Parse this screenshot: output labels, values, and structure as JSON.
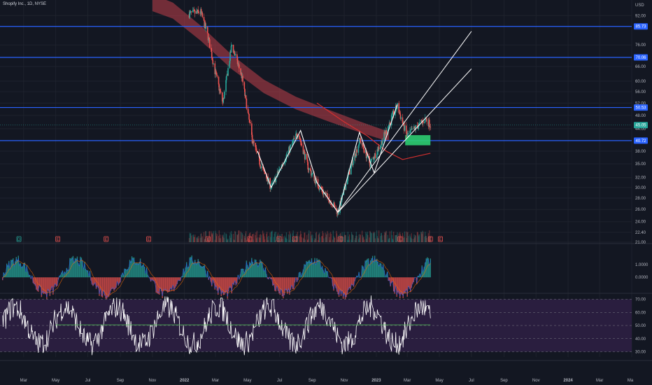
{
  "header": {
    "symbol": "Shopify Inc.",
    "interval": "1D",
    "exchange": "NYSE"
  },
  "currency": "USD",
  "colors": {
    "background": "#131722",
    "up": "#26a69a",
    "down": "#ef5350",
    "level_line": "#2962ff",
    "channel": "#ffffff",
    "ribbon": "#c1404b",
    "rsi_band": "#2a1e3f",
    "rsi_line": "#ffffff",
    "rsi_signal": "#4caf50",
    "macd_line": "#2962ff",
    "signal_line": "#ff6d00",
    "ema_line": "#d32f2f",
    "grid": "#1e222d",
    "axis_text": "#b2b5be",
    "zone": "#2ecc71"
  },
  "chart_data": [
    {
      "type": "candlestick",
      "ylabel": "USD",
      "ylim": [
        21,
        100
      ],
      "y_scale": "log",
      "price_axis_ticks": [
        "92.00",
        "76.00",
        "66.00",
        "60.00",
        "56.00",
        "52.00",
        "48.00",
        "44.00",
        "38.00",
        "35.00",
        "32.00",
        "30.00",
        "28.00",
        "26.00",
        "24.00",
        "22.40",
        "21.00"
      ],
      "x_axis_ticks": [
        "Mar",
        "May",
        "Jul",
        "Sep",
        "Nov",
        "2022",
        "Mar",
        "May",
        "Jul",
        "Sep",
        "Nov",
        "2023",
        "Mar",
        "May",
        "Jul",
        "Sep",
        "Nov",
        "2024",
        "Mar",
        "Ma"
      ],
      "horizontal_levels": [
        {
          "value": 85.73,
          "label": "85.73"
        },
        {
          "value": 70.06,
          "label": "70.06"
        },
        {
          "value": 50.53,
          "label": "50.53"
        },
        {
          "value": 40.72,
          "label": "40.72"
        }
      ],
      "last_price": {
        "value": 45.05,
        "label": "45.05"
      },
      "price_series": [
        {
          "date": "2022-01-10",
          "close": 93
        },
        {
          "date": "2022-02-01",
          "close": 94
        },
        {
          "date": "2022-02-15",
          "close": 80
        },
        {
          "date": "2022-02-28",
          "close": 64
        },
        {
          "date": "2022-03-15",
          "close": 52
        },
        {
          "date": "2022-04-01",
          "close": 76
        },
        {
          "date": "2022-04-20",
          "close": 62
        },
        {
          "date": "2022-05-10",
          "close": 41
        },
        {
          "date": "2022-05-25",
          "close": 35
        },
        {
          "date": "2022-06-15",
          "close": 30
        },
        {
          "date": "2022-07-10",
          "close": 36
        },
        {
          "date": "2022-08-05",
          "close": 43
        },
        {
          "date": "2022-08-25",
          "close": 34
        },
        {
          "date": "2022-09-15",
          "close": 30
        },
        {
          "date": "2022-10-10",
          "close": 27
        },
        {
          "date": "2022-10-20",
          "close": 25.5
        },
        {
          "date": "2022-11-10",
          "close": 33
        },
        {
          "date": "2022-12-01",
          "close": 41
        },
        {
          "date": "2022-12-20",
          "close": 35
        },
        {
          "date": "2023-01-10",
          "close": 40
        },
        {
          "date": "2023-02-01",
          "close": 48
        },
        {
          "date": "2023-02-10",
          "close": 51
        },
        {
          "date": "2023-02-28",
          "close": 42
        },
        {
          "date": "2023-03-15",
          "close": 44
        },
        {
          "date": "2023-04-05",
          "close": 47
        },
        {
          "date": "2023-04-14",
          "close": 45.05
        }
      ],
      "channel_lines": [
        {
          "from": {
            "date": "2022-10-20",
            "value": 25.5
          },
          "to": {
            "date": "2023-07-01",
            "value": 83
          }
        },
        {
          "from": {
            "date": "2022-10-20",
            "value": 25.5
          },
          "to": {
            "date": "2023-07-01",
            "value": 65
          }
        }
      ],
      "zigzag": [
        {
          "date": "2022-05-20",
          "value": 38
        },
        {
          "date": "2022-06-15",
          "value": 30
        },
        {
          "date": "2022-08-10",
          "value": 43.5
        },
        {
          "date": "2022-09-10",
          "value": 31
        },
        {
          "date": "2022-10-20",
          "value": 25.5
        },
        {
          "date": "2022-11-30",
          "value": 43
        },
        {
          "date": "2022-12-28",
          "value": 33
        },
        {
          "date": "2023-02-10",
          "value": 51.5
        }
      ],
      "moving_average": [
        {
          "date": "2022-09-10",
          "value": 52
        },
        {
          "date": "2022-11-01",
          "value": 46
        },
        {
          "date": "2022-12-15",
          "value": 42
        },
        {
          "date": "2023-01-20",
          "value": 38
        },
        {
          "date": "2023-02-20",
          "value": 36
        },
        {
          "date": "2023-03-20",
          "value": 36.8
        },
        {
          "date": "2023-04-14",
          "value": 37.5
        }
      ],
      "ma_ribbon": [
        {
          "date": "2021-11-01",
          "value": 100
        },
        {
          "date": "2021-12-10",
          "value": 95
        },
        {
          "date": "2022-02-01",
          "value": 82
        },
        {
          "date": "2022-04-01",
          "value": 68
        },
        {
          "date": "2022-06-01",
          "value": 58
        },
        {
          "date": "2022-08-01",
          "value": 52
        },
        {
          "date": "2022-10-01",
          "value": 48
        },
        {
          "date": "2022-12-01",
          "value": 44.5
        },
        {
          "date": "2023-01-10",
          "value": 42.5
        },
        {
          "date": "2023-01-25",
          "value": 41.8
        }
      ],
      "zones": [
        {
          "from": "2023-02-25",
          "to": "2023-04-14",
          "low": 39.5,
          "high": 42.2
        }
      ],
      "events": [
        {
          "date": "2021-02-20",
          "kind": "D"
        },
        {
          "date": "2021-05-05",
          "kind": "E"
        },
        {
          "date": "2021-08-05",
          "kind": "E"
        },
        {
          "date": "2021-10-25",
          "kind": "E"
        },
        {
          "date": "2022-02-15",
          "kind": "E"
        },
        {
          "date": "2022-05-05",
          "kind": "E"
        },
        {
          "date": "2022-06-30",
          "kind": "S"
        },
        {
          "date": "2022-07-30",
          "kind": "E"
        },
        {
          "date": "2022-10-25",
          "kind": "E"
        },
        {
          "date": "2023-02-15",
          "kind": "E"
        },
        {
          "date": "2023-04-14",
          "kind": "E"
        },
        {
          "date": "2023-05-03",
          "kind": "E"
        }
      ]
    },
    {
      "type": "bar",
      "name": "momentum_histogram",
      "axis_ticks": [
        "1.0000",
        "0.0000"
      ],
      "ylim": [
        -1.2,
        2.6
      ]
    },
    {
      "type": "line",
      "name": "rsi",
      "axis_ticks": [
        "70.00",
        "60.00",
        "50.00",
        "40.00",
        "30.00"
      ],
      "ylim": [
        26,
        74
      ],
      "band": [
        30,
        70
      ],
      "signal_level": 50.5,
      "reference_levels": [
        70,
        60,
        50,
        40,
        30
      ]
    }
  ]
}
